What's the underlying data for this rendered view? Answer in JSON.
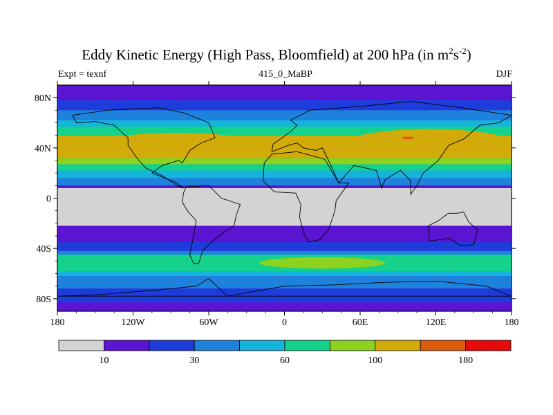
{
  "title": {
    "main": "Eddy Kinetic Energy (High Pass, Bloomfield) at 200 hPa (in m",
    "sup1": "2",
    "mid": "s",
    "sup2": "-2",
    "end": ")"
  },
  "subtitle": {
    "left": "Expt = texnf",
    "center": "415_0_MaBP",
    "right": "DJF"
  },
  "colors": {
    "levels": [
      "#d3d3d3",
      "#5a14d2",
      "#1e3cdc",
      "#1e82dc",
      "#14b4dc",
      "#14d28c",
      "#8cd21e",
      "#d2aa0a",
      "#dc5a0a",
      "#e60a0a"
    ],
    "frame": "#000000"
  },
  "chart_data": {
    "type": "heatmap",
    "title": "Eddy Kinetic Energy (High Pass, Bloomfield) at 200 hPa (in m2s-2)",
    "variable": "Eddy Kinetic Energy",
    "units": "m2 s-2",
    "level": "200 hPa",
    "season": "DJF",
    "experiment": "texnf",
    "x_range": [
      -180,
      180
    ],
    "y_range": [
      -90,
      90
    ],
    "x_ticks": [
      {
        "value": -180,
        "label": "180"
      },
      {
        "value": -120,
        "label": "120W"
      },
      {
        "value": -60,
        "label": "60W"
      },
      {
        "value": 0,
        "label": "0"
      },
      {
        "value": 60,
        "label": "60E"
      },
      {
        "value": 120,
        "label": "120E"
      },
      {
        "value": 180,
        "label": "180"
      }
    ],
    "y_ticks": [
      {
        "value": 80,
        "label": "80N"
      },
      {
        "value": 40,
        "label": "40N"
      },
      {
        "value": 0,
        "label": "0"
      },
      {
        "value": -40,
        "label": "40S"
      },
      {
        "value": -80,
        "label": "80S"
      }
    ],
    "colorbar": {
      "levels": [
        10,
        20,
        30,
        45,
        60,
        80,
        100,
        140,
        180
      ],
      "labels": [
        {
          "index": 1,
          "text": "10"
        },
        {
          "index": 3,
          "text": "30"
        },
        {
          "index": 5,
          "text": "60"
        },
        {
          "index": 7,
          "text": "100"
        },
        {
          "index": 9,
          "text": "180"
        }
      ]
    },
    "bands": [
      {
        "name": "north-polar-band",
        "level": 1,
        "lat_min": 78,
        "lat_max": 90
      },
      {
        "name": "north-midlat-1",
        "level": 2,
        "lat_min": 70,
        "lat_max": 78
      },
      {
        "name": "north-midlat-2",
        "level": 3,
        "lat_min": 62,
        "lat_max": 70
      },
      {
        "name": "north-midlat-3",
        "level": 4,
        "lat_min": 57,
        "lat_max": 62
      },
      {
        "name": "north-midlat-4",
        "level": 5,
        "lat_min": 50,
        "lat_max": 57
      },
      {
        "name": "north-storm-track",
        "level": 7,
        "lat_min": 32,
        "lat_max": 50
      },
      {
        "name": "north-subtropics-1",
        "level": 6,
        "lat_min": 27,
        "lat_max": 32
      },
      {
        "name": "north-subtropics-2",
        "level": 5,
        "lat_min": 22,
        "lat_max": 27
      },
      {
        "name": "north-subtropics-3",
        "level": 4,
        "lat_min": 16,
        "lat_max": 22
      },
      {
        "name": "north-subtropics-4",
        "level": 3,
        "lat_min": 10,
        "lat_max": 16
      },
      {
        "name": "tropics-low",
        "level": 1,
        "lat_min": -10,
        "lat_max": 10
      },
      {
        "name": "tropics-calm",
        "level": 0,
        "lat_min": -22,
        "lat_max": 8
      },
      {
        "name": "south-subtropics",
        "level": 1,
        "lat_min": -35,
        "lat_max": -22
      },
      {
        "name": "south-midlat-1",
        "level": 2,
        "lat_min": -42,
        "lat_max": -35
      },
      {
        "name": "south-midlat-2",
        "level": 3,
        "lat_min": -48,
        "lat_max": -42
      },
      {
        "name": "south-storm-track",
        "level": 4,
        "lat_min": -62,
        "lat_max": -48
      },
      {
        "name": "south-storm-core",
        "level": 5,
        "lat_min": -58,
        "lat_max": -45
      },
      {
        "name": "south-high-1",
        "level": 3,
        "lat_min": -72,
        "lat_max": -62
      },
      {
        "name": "south-high-2",
        "level": 2,
        "lat_min": -83,
        "lat_max": -72
      },
      {
        "name": "south-polar-band",
        "level": 1,
        "lat_min": -90,
        "lat_max": -83
      }
    ],
    "features": [
      {
        "name": "atlantic-storm-track-max",
        "level": 7,
        "lon_min": -150,
        "lon_max": -20,
        "lat_min": 32,
        "lat_max": 52
      },
      {
        "name": "pacific-storm-track-max",
        "level": 7,
        "lon_min": 50,
        "lon_max": 180,
        "lat_min": 33,
        "lat_max": 55
      },
      {
        "name": "pacific-jet-core",
        "level": 8,
        "lon_min": 93,
        "lon_max": 103,
        "lat_min": 47,
        "lat_max": 49
      },
      {
        "name": "south-storm-track-core",
        "level": 6,
        "lon_min": -20,
        "lon_max": 80,
        "lat_min": -56,
        "lat_max": -47
      }
    ]
  }
}
